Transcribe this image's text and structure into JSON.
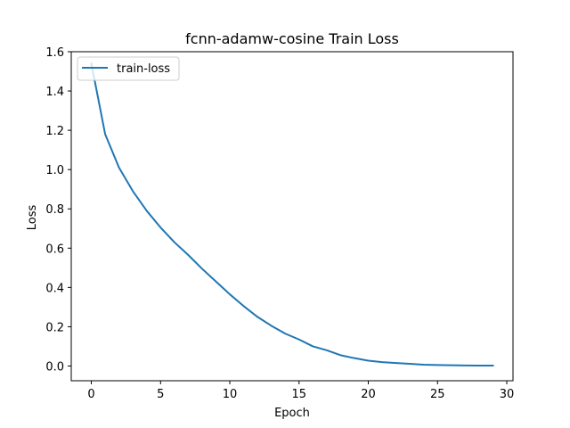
{
  "chart_data": {
    "type": "line",
    "title": "fcnn-adamw-cosine  Train Loss",
    "xlabel": "Epoch",
    "ylabel": "Loss",
    "xlim": [
      -1.45,
      30.45
    ],
    "ylim": [
      -0.075,
      1.6
    ],
    "xticks": [
      0,
      5,
      10,
      15,
      20,
      25,
      30
    ],
    "yticks": [
      0.0,
      0.2,
      0.4,
      0.6,
      0.8,
      1.0,
      1.2,
      1.4,
      1.6
    ],
    "xtick_labels": [
      "0",
      "5",
      "10",
      "15",
      "20",
      "25",
      "30"
    ],
    "ytick_labels": [
      "0.0",
      "0.2",
      "0.4",
      "0.6",
      "0.8",
      "1.0",
      "1.2",
      "1.4",
      "1.6"
    ],
    "grid": false,
    "legend_position": "upper left",
    "series": [
      {
        "name": "train-loss",
        "color": "#1f77b4",
        "x": [
          0,
          1,
          2,
          3,
          4,
          5,
          6,
          7,
          8,
          9,
          10,
          11,
          12,
          13,
          14,
          15,
          16,
          17,
          18,
          19,
          20,
          21,
          22,
          23,
          24,
          25,
          26,
          27,
          28,
          29
        ],
        "y": [
          1.54,
          1.18,
          1.01,
          0.89,
          0.79,
          0.705,
          0.63,
          0.565,
          0.495,
          0.43,
          0.365,
          0.305,
          0.25,
          0.205,
          0.165,
          0.135,
          0.1,
          0.08,
          0.055,
          0.04,
          0.027,
          0.02,
          0.015,
          0.011,
          0.007,
          0.005,
          0.004,
          0.003,
          0.002,
          0.002
        ]
      }
    ]
  }
}
